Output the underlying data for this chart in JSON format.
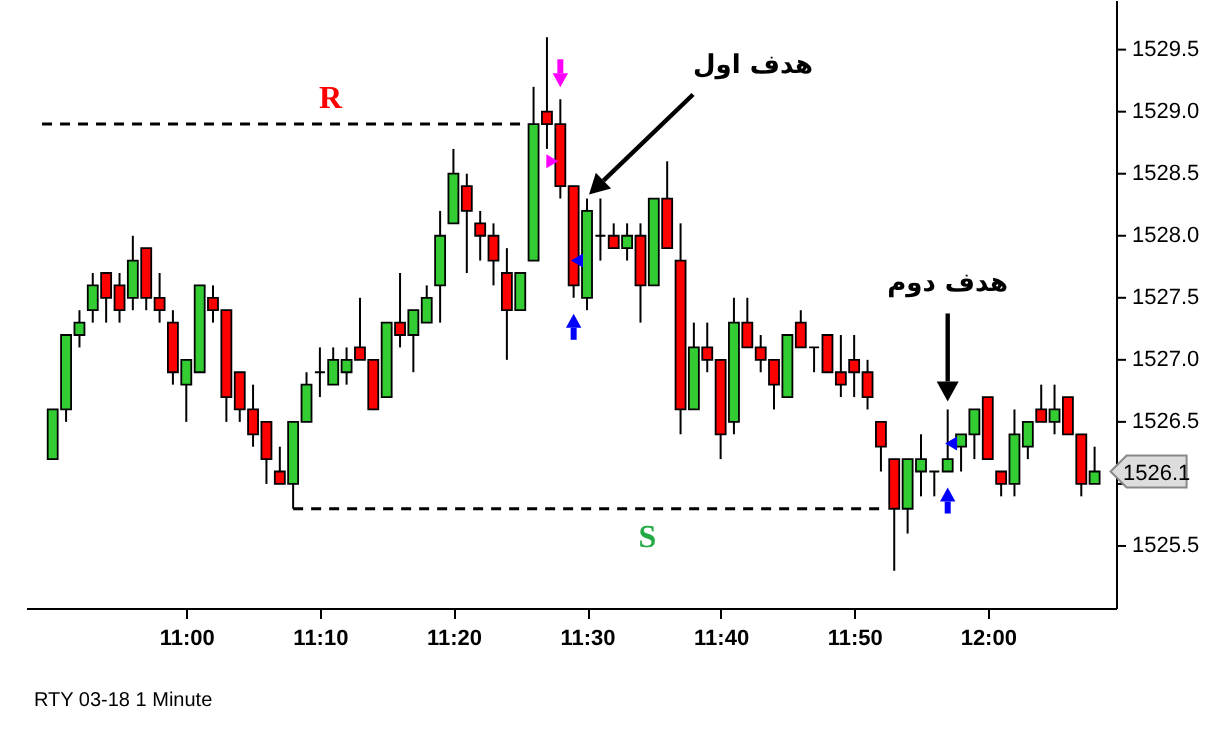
{
  "chart_data": {
    "type": "candlestick",
    "x": [
      10.8333,
      10.85,
      10.8667,
      10.8833,
      10.9,
      10.9167,
      10.9333,
      10.95,
      10.9667,
      10.9833,
      11.0,
      11.0167,
      11.0333,
      11.05,
      11.0667,
      11.0833,
      11.1,
      11.1167,
      11.1333,
      11.15,
      11.1667,
      11.1833,
      11.2,
      11.2167,
      11.2333,
      11.25,
      11.2667,
      11.2833,
      11.3,
      11.3167,
      11.3333,
      11.35,
      11.3667,
      11.3833,
      11.4,
      11.4167,
      11.4333,
      11.45,
      11.4667,
      11.4833,
      11.5,
      11.5167,
      11.5333,
      11.55,
      11.5667,
      11.5833,
      11.6,
      11.6167,
      11.6333,
      11.65,
      11.6667,
      11.6833,
      11.7,
      11.7167,
      11.7333,
      11.75,
      11.7667,
      11.7833,
      11.8,
      11.8167,
      11.8333,
      11.85,
      11.8667,
      11.8833,
      11.9,
      11.9167,
      11.9333,
      11.95,
      11.9667,
      11.9833,
      12.0,
      12.0167,
      12.0333,
      12.05,
      12.0667,
      12.0833,
      12.1,
      12.1167,
      12.1333
    ],
    "ohlc": [
      [
        1526.2,
        1526.6,
        1526.2,
        1526.6
      ],
      [
        1526.6,
        1527.2,
        1526.5,
        1527.2
      ],
      [
        1527.2,
        1527.4,
        1527.1,
        1527.3
      ],
      [
        1527.4,
        1527.7,
        1527.3,
        1527.6
      ],
      [
        1527.7,
        1527.7,
        1527.3,
        1527.5
      ],
      [
        1527.6,
        1527.7,
        1527.3,
        1527.4
      ],
      [
        1527.5,
        1528.0,
        1527.4,
        1527.8
      ],
      [
        1527.9,
        1527.9,
        1527.4,
        1527.5
      ],
      [
        1527.5,
        1527.7,
        1527.3,
        1527.4
      ],
      [
        1527.3,
        1527.4,
        1526.8,
        1526.9
      ],
      [
        1526.8,
        1527.0,
        1526.5,
        1527.0
      ],
      [
        1526.9,
        1527.6,
        1526.9,
        1527.6
      ],
      [
        1527.5,
        1527.6,
        1527.3,
        1527.4
      ],
      [
        1527.4,
        1527.4,
        1526.5,
        1526.7
      ],
      [
        1526.9,
        1526.9,
        1526.5,
        1526.6
      ],
      [
        1526.6,
        1526.8,
        1526.3,
        1526.4
      ],
      [
        1526.5,
        1526.5,
        1526.0,
        1526.2
      ],
      [
        1526.1,
        1526.3,
        1526.0,
        1526.0
      ],
      [
        1526.0,
        1526.5,
        1525.8,
        1526.5
      ],
      [
        1526.5,
        1526.9,
        1526.5,
        1526.8
      ],
      [
        1526.9,
        1527.1,
        1526.7,
        1526.9
      ],
      [
        1526.8,
        1527.1,
        1526.8,
        1527.0
      ],
      [
        1526.9,
        1527.1,
        1526.8,
        1527.0
      ],
      [
        1527.1,
        1527.5,
        1527.0,
        1527.0
      ],
      [
        1527.0,
        1527.0,
        1526.6,
        1526.6
      ],
      [
        1526.7,
        1527.3,
        1526.7,
        1527.3
      ],
      [
        1527.3,
        1527.7,
        1527.1,
        1527.2
      ],
      [
        1527.2,
        1527.4,
        1526.9,
        1527.4
      ],
      [
        1527.3,
        1527.6,
        1527.3,
        1527.5
      ],
      [
        1527.6,
        1528.2,
        1527.3,
        1528.0
      ],
      [
        1528.1,
        1528.7,
        1528.1,
        1528.5
      ],
      [
        1528.4,
        1528.5,
        1527.7,
        1528.2
      ],
      [
        1528.1,
        1528.2,
        1527.8,
        1528.0
      ],
      [
        1528.0,
        1528.1,
        1527.6,
        1527.8
      ],
      [
        1527.7,
        1527.9,
        1527.0,
        1527.4
      ],
      [
        1527.4,
        1527.7,
        1527.4,
        1527.7
      ],
      [
        1527.8,
        1529.2,
        1527.8,
        1528.9
      ],
      [
        1529.0,
        1529.6,
        1528.7,
        1528.9
      ],
      [
        1528.9,
        1529.1,
        1528.3,
        1528.4
      ],
      [
        1528.4,
        1528.4,
        1527.5,
        1527.6
      ],
      [
        1527.5,
        1528.3,
        1527.4,
        1528.2
      ],
      [
        1528.0,
        1528.3,
        1527.8,
        1528.0
      ],
      [
        1528.0,
        1528.1,
        1527.9,
        1527.9
      ],
      [
        1527.9,
        1528.1,
        1527.8,
        1528.0
      ],
      [
        1528.0,
        1528.1,
        1527.3,
        1527.6
      ],
      [
        1527.6,
        1528.3,
        1527.6,
        1528.3
      ],
      [
        1528.3,
        1528.6,
        1527.9,
        1527.9
      ],
      [
        1527.8,
        1528.1,
        1526.4,
        1526.6
      ],
      [
        1526.6,
        1527.3,
        1526.6,
        1527.1
      ],
      [
        1527.1,
        1527.3,
        1526.9,
        1527.0
      ],
      [
        1527.0,
        1527.0,
        1526.2,
        1526.4
      ],
      [
        1526.5,
        1527.5,
        1526.4,
        1527.3
      ],
      [
        1527.3,
        1527.5,
        1527.1,
        1527.1
      ],
      [
        1527.1,
        1527.2,
        1526.9,
        1527.0
      ],
      [
        1527.0,
        1527.0,
        1526.6,
        1526.8
      ],
      [
        1526.7,
        1527.2,
        1526.7,
        1527.2
      ],
      [
        1527.3,
        1527.4,
        1527.1,
        1527.1
      ],
      [
        1527.1,
        1527.1,
        1526.9,
        1527.1
      ],
      [
        1527.2,
        1527.2,
        1526.9,
        1526.9
      ],
      [
        1526.9,
        1527.2,
        1526.7,
        1526.8
      ],
      [
        1527.0,
        1527.2,
        1526.7,
        1526.9
      ],
      [
        1526.9,
        1527.0,
        1526.6,
        1526.7
      ],
      [
        1526.5,
        1526.5,
        1526.1,
        1526.3
      ],
      [
        1526.2,
        1526.2,
        1525.3,
        1525.8
      ],
      [
        1525.8,
        1526.2,
        1525.6,
        1526.2
      ],
      [
        1526.1,
        1526.4,
        1525.9,
        1526.2
      ],
      [
        1526.1,
        1526.1,
        1525.9,
        1526.1
      ],
      [
        1526.1,
        1526.6,
        1526.1,
        1526.2
      ],
      [
        1526.3,
        1526.4,
        1526.1,
        1526.4
      ],
      [
        1526.4,
        1526.6,
        1526.2,
        1526.6
      ],
      [
        1526.7,
        1526.7,
        1526.2,
        1526.2
      ],
      [
        1526.1,
        1526.1,
        1525.9,
        1526.0
      ],
      [
        1526.0,
        1526.6,
        1525.9,
        1526.4
      ],
      [
        1526.3,
        1526.5,
        1526.2,
        1526.5
      ],
      [
        1526.6,
        1526.8,
        1526.5,
        1526.5
      ],
      [
        1526.5,
        1526.8,
        1526.4,
        1526.6
      ],
      [
        1526.7,
        1526.7,
        1526.4,
        1526.4
      ],
      [
        1526.4,
        1526.4,
        1525.9,
        1526.0
      ],
      [
        1526.0,
        1526.3,
        1526.0,
        1526.1
      ]
    ],
    "series": [
      {
        "name": "R",
        "type": "line",
        "line_style": "dashed",
        "color": "#000000",
        "x": [
          10.82,
          11.42
        ],
        "values": [
          1528.9,
          1528.9
        ]
      },
      {
        "name": "S",
        "type": "line",
        "line_style": "dashed",
        "color": "#000000",
        "x": [
          11.1333,
          11.87
        ],
        "values": [
          1525.8,
          1525.8
        ]
      }
    ],
    "xlim": [
      10.8,
      12.16
    ],
    "ylim": [
      1525.0,
      1529.9
    ],
    "xticks": [
      {
        "value": 11,
        "label": "11:00"
      },
      {
        "value": 11.1667,
        "label": "11:10"
      },
      {
        "value": 11.3333,
        "label": "11:20"
      },
      {
        "value": 11.5,
        "label": "11:30"
      },
      {
        "value": 11.6667,
        "label": "11:40"
      },
      {
        "value": 11.8333,
        "label": "11:50"
      },
      {
        "value": 12,
        "label": "12:00"
      }
    ],
    "yticks": [
      1525.5,
      {
        "value": 1526,
        "label": null
      },
      1526.5,
      {
        "value": 1527,
        "label": "1527.0"
      },
      1527.5,
      {
        "value": 1528,
        "label": "1528.0"
      },
      1528.5,
      {
        "value": 1529,
        "label": "1529.0"
      },
      1529.5
    ],
    "annotations": [
      "هدف اول",
      "هدف دوم",
      {
        "text": "1526.1",
        "x": 12.1333,
        "y": 1526.1
      },
      "RTY 03-18 1 Minute"
    ]
  }
}
